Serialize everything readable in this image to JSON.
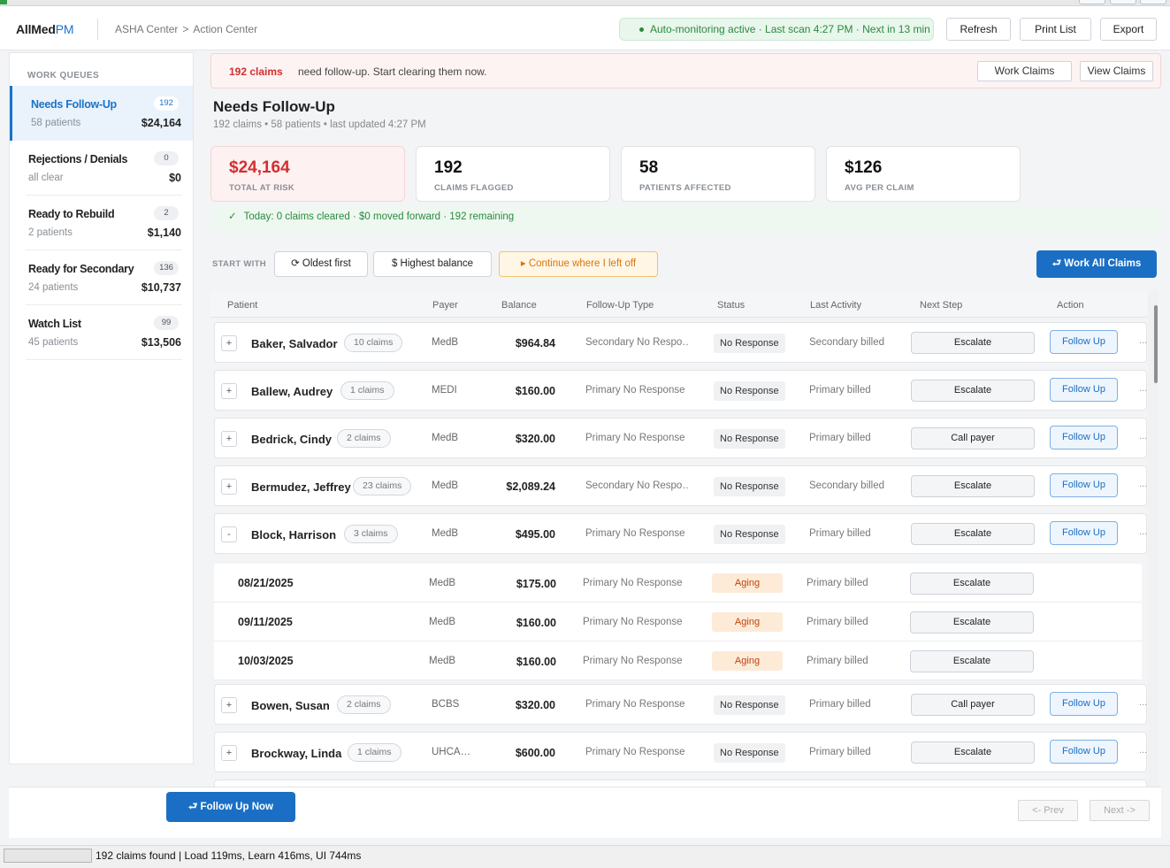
{
  "header": {
    "logo_main": "AllMed",
    "logo_accent": "PM",
    "breadcrumb": [
      "ASHA Center",
      "Action Center"
    ],
    "breadcrumb_sep": ">",
    "monitor_text": "Auto-monitoring active · Last scan 4:27 PM · Next in 13 min",
    "buttons": {
      "refresh": "Refresh",
      "print": "Print List",
      "export": "Export"
    }
  },
  "sidebar": {
    "title": "WORK QUEUES",
    "queues": [
      {
        "name": "Needs Follow-Up",
        "count": "192",
        "sub": "58 patients",
        "amount": "$24,164",
        "active": true
      },
      {
        "name": "Rejections / Denials",
        "count": "0",
        "sub": "all clear",
        "amount": "$0",
        "active": false
      },
      {
        "name": "Ready to Rebuild",
        "count": "2",
        "sub": "2 patients",
        "amount": "$1,140",
        "active": false
      },
      {
        "name": "Ready for Secondary",
        "count": "136",
        "sub": "24 patients",
        "amount": "$10,737",
        "active": false
      },
      {
        "name": "Watch List",
        "count": "99",
        "sub": "45 patients",
        "amount": "$13,506",
        "active": false
      }
    ]
  },
  "alert": {
    "count": "192 claims",
    "message": "need follow-up. Start clearing them now.",
    "work_claims": "Work Claims",
    "view_claims": "View Claims"
  },
  "page": {
    "title": "Needs Follow-Up",
    "subtitle": "192 claims • 58 patients • last updated 4:27 PM"
  },
  "cards": [
    {
      "value": "$24,164",
      "label": "TOTAL AT RISK"
    },
    {
      "value": "192",
      "label": "CLAIMS FLAGGED"
    },
    {
      "value": "58",
      "label": "PATIENTS AFFECTED"
    },
    {
      "value": "$126",
      "label": "AVG PER CLAIM"
    }
  ],
  "today": {
    "check": "✓",
    "text": "Today: 0 claims cleared · $0 moved forward · 192 remaining"
  },
  "start_with": {
    "label": "START WITH",
    "oldest": "⟳ Oldest first",
    "highest": "$ Highest balance",
    "continue": "▸ Continue where I left off",
    "work_all": "⮐ Work All Claims"
  },
  "table": {
    "headers": [
      "Patient",
      "Payer",
      "Balance",
      "Follow-Up Type",
      "Status",
      "Last Activity",
      "Next Step",
      "Action"
    ],
    "rows": [
      {
        "expand": "+",
        "patient": "Baker, Salvador",
        "claims": "10 claims",
        "payer": "MedB",
        "balance": "$964.84",
        "type": "Secondary No Respo…",
        "status": "No Response",
        "last": "Secondary billed",
        "next": "Escalate",
        "action": "Follow Up",
        "more": "..."
      },
      {
        "expand": "+",
        "patient": "Ballew, Audrey",
        "claims": "1 claims",
        "payer": "MEDI",
        "balance": "$160.00",
        "type": "Primary No Response",
        "status": "No Response",
        "last": "Primary billed",
        "next": "Escalate",
        "action": "Follow Up",
        "more": "..."
      },
      {
        "expand": "+",
        "patient": "Bedrick, Cindy",
        "claims": "2 claims",
        "payer": "MedB",
        "balance": "$320.00",
        "type": "Primary No Response",
        "status": "No Response",
        "last": "Primary billed",
        "next": "Call payer",
        "action": "Follow Up",
        "more": "..."
      },
      {
        "expand": "+",
        "patient": "Bermudez, Jeffrey",
        "claims": "23 claims",
        "payer": "MedB",
        "balance": "$2,089.24",
        "type": "Secondary No Respo…",
        "status": "No Response",
        "last": "Secondary billed",
        "next": "Escalate",
        "action": "Follow Up",
        "more": "..."
      },
      {
        "expand": "-",
        "patient": "Block, Harrison",
        "claims": "3 claims",
        "payer": "MedB",
        "balance": "$495.00",
        "type": "Primary No Response",
        "status": "No Response",
        "last": "Primary billed",
        "next": "Escalate",
        "action": "Follow Up",
        "more": "..."
      }
    ],
    "subrows": [
      {
        "date": "08/21/2025",
        "payer": "MedB",
        "balance": "$175.00",
        "type": "Primary No Response",
        "status": "Aging",
        "last": "Primary billed",
        "next": "Escalate"
      },
      {
        "date": "09/11/2025",
        "payer": "MedB",
        "balance": "$160.00",
        "type": "Primary No Response",
        "status": "Aging",
        "last": "Primary billed",
        "next": "Escalate"
      },
      {
        "date": "10/03/2025",
        "payer": "MedB",
        "balance": "$160.00",
        "type": "Primary No Response",
        "status": "Aging",
        "last": "Primary billed",
        "next": "Escalate"
      }
    ],
    "rows2": [
      {
        "expand": "+",
        "patient": "Bowen, Susan",
        "claims": "2 claims",
        "payer": "BCBS",
        "balance": "$320.00",
        "type": "Primary No Response",
        "status": "No Response",
        "last": "Primary billed",
        "next": "Call payer",
        "action": "Follow Up",
        "more": "..."
      },
      {
        "expand": "+",
        "patient": "Brockway, Linda",
        "claims": "1 claims",
        "payer": "UHCA…",
        "balance": "$600.00",
        "type": "Primary No Response",
        "status": "No Response",
        "last": "Primary billed",
        "next": "Escalate",
        "action": "Follow Up",
        "more": "..."
      }
    ]
  },
  "footer": {
    "follow_up_now": "⮐ Follow Up Now",
    "prev": "<- Prev",
    "next": "Next ->"
  },
  "statusbar": {
    "text": "192 claims found | Load 119ms, Learn 416ms, UI 744ms"
  }
}
